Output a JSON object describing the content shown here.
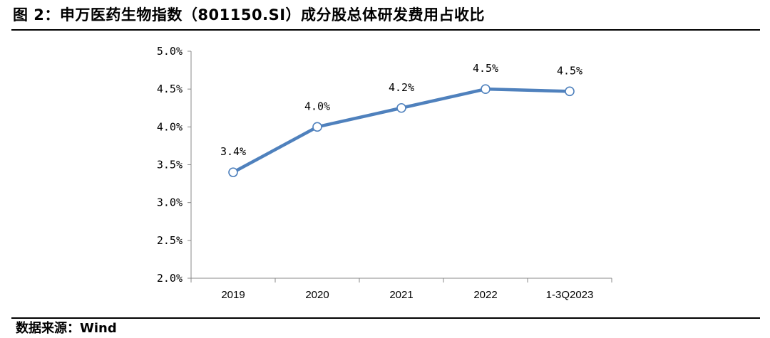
{
  "figure": {
    "title": "图 2：申万医药生物指数（801150.SI）成分股总体研发费用占收比",
    "source": "数据来源：Wind"
  },
  "chart_data": {
    "type": "line",
    "categories": [
      "2019",
      "2020",
      "2021",
      "2022",
      "1-3Q2023"
    ],
    "series": [
      {
        "values": [
          3.4,
          4.0,
          4.25,
          4.5,
          4.47
        ],
        "labels": [
          "3.4%",
          "4.0%",
          "4.2%",
          "4.5%",
          "4.5%"
        ],
        "color": "#4f81bd"
      }
    ],
    "ylim": [
      2.0,
      5.0
    ],
    "yticks": [
      2.0,
      2.5,
      3.0,
      3.5,
      4.0,
      4.5,
      5.0
    ],
    "ytick_labels": [
      "2.0%",
      "2.5%",
      "3.0%",
      "3.5%",
      "4.0%",
      "4.5%",
      "5.0%"
    ],
    "grid": false,
    "legend": "none",
    "marker": "hollow-circle"
  }
}
